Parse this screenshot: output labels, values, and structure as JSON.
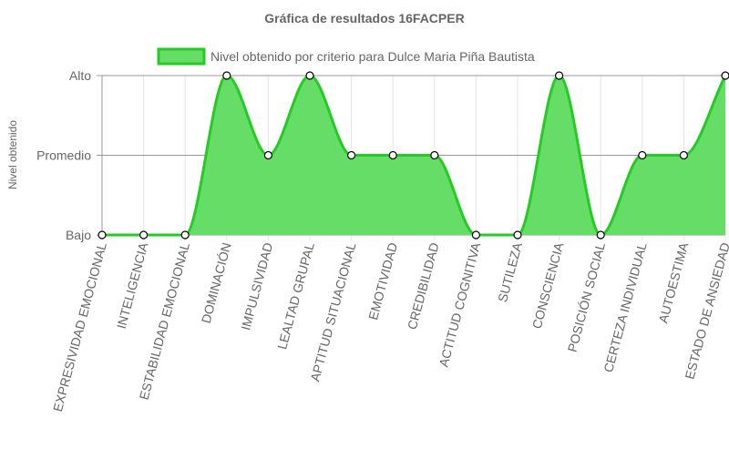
{
  "chart_data": {
    "type": "area",
    "title": "Gráfica de resultados 16FACPER",
    "ylabel": "Nivel obtenido",
    "y_levels": [
      "Bajo",
      "Promedio",
      "Alto"
    ],
    "ylim": [
      0,
      2
    ],
    "grid": true,
    "legend_position": "top-center",
    "categories": [
      "EXPRESIVIDAD EMOCIONAL",
      "INTELIGENCIA",
      "ESTABILIDAD EMOCIONAL",
      "DOMINACIÓN",
      "IMPULSIVIDAD",
      "LEALTAD GRUPAL",
      "APTITUD SITUACIONAL",
      "EMOTIVIDAD",
      "CREDIBILIDAD",
      "ACTITUD COGNITIVA",
      "SUTILEZA",
      "CONSCIENCIA",
      "POSICIÓN SOCIAL",
      "CERTEZA INDIVIDUAL",
      "AUTOESTIMA",
      "ESTADO DE ANSIEDAD"
    ],
    "series": [
      {
        "name": "Nivel obtenido por criterio para Dulce Maria Piña Bautista",
        "values": [
          0,
          0,
          0,
          2,
          1,
          2,
          1,
          1,
          1,
          0,
          0,
          2,
          0,
          1,
          1,
          2
        ]
      }
    ],
    "colors": {
      "fill": "#66dd66",
      "line": "#22cc22",
      "point_fill": "#ffffff",
      "point_stroke": "#000000",
      "grid": "#e5e5e5",
      "grid_major": "#999999"
    }
  }
}
